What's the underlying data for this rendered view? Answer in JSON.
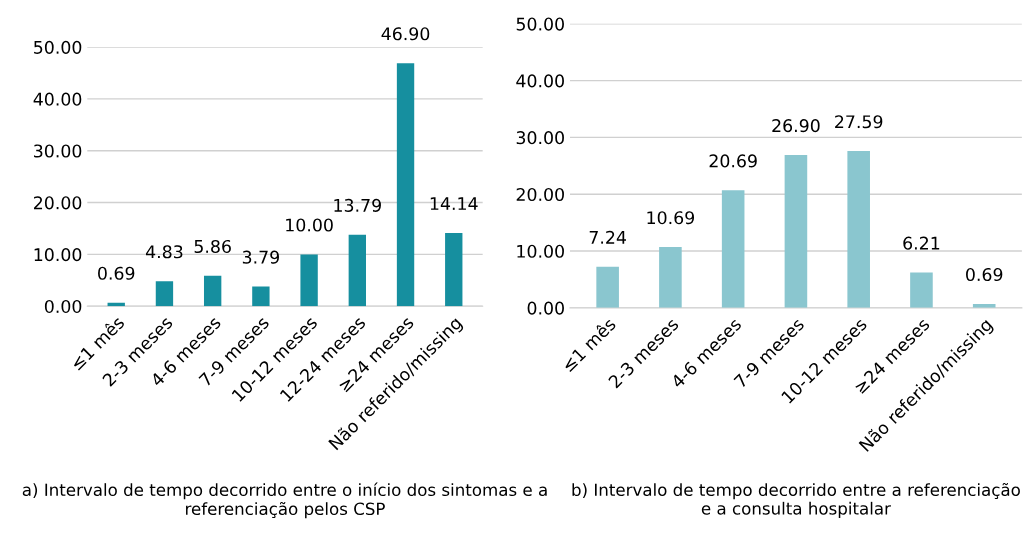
{
  "chart_data": [
    {
      "type": "bar",
      "categories": [
        "≤1 mês",
        "2-3 meses",
        "4-6 meses",
        "7-9 meses",
        "10-12 meses",
        "12-24 meses",
        "≥24 meses",
        "Não referido/missing"
      ],
      "values": [
        0.69,
        4.83,
        5.86,
        3.79,
        10.0,
        13.79,
        46.9,
        14.14
      ],
      "value_labels": [
        "0.69",
        "4.83",
        "5.86",
        "3.79",
        "10.00",
        "13.79",
        "46.90",
        "14.14"
      ],
      "color": "#168f9f",
      "ylim": [
        0,
        50
      ],
      "yticks": [
        {
          "value": 0,
          "label": "0.00"
        },
        {
          "value": 10,
          "label": "10.00"
        },
        {
          "value": 20,
          "label": "20.00"
        },
        {
          "value": 30,
          "label": "30.00"
        },
        {
          "value": 40,
          "label": "40.00"
        },
        {
          "value": 50,
          "label": "50.00"
        }
      ],
      "grid": "y",
      "annotations": [
        "a) Intervalo de tempo decorrido entre o início dos sintomas e a referenciação pelos CSP"
      ]
    },
    {
      "type": "bar",
      "categories": [
        "≤1 mês",
        "2-3 meses",
        "4-6 meses",
        "7-9 meses",
        "10-12 meses",
        "≥24 meses",
        "Não referido/missing"
      ],
      "values": [
        7.24,
        10.69,
        20.69,
        26.9,
        27.59,
        6.21,
        0.69
      ],
      "value_labels": [
        "7.24",
        "10.69",
        "20.69",
        "26.90",
        "27.59",
        "6.21",
        "0.69"
      ],
      "color": "#8ac6cf",
      "ylim": [
        0,
        50
      ],
      "yticks": [
        {
          "value": 0,
          "label": "0.00"
        },
        {
          "value": 10,
          "label": "10.00"
        },
        {
          "value": 20,
          "label": "20.00"
        },
        {
          "value": 30,
          "label": "30.00"
        },
        {
          "value": 40,
          "label": "40.00"
        },
        {
          "value": 50,
          "label": "50.00"
        }
      ],
      "grid": "y",
      "annotations": [
        "b) Intervalo de tempo decorrido entre a referenciação e a consulta hospitalar"
      ]
    }
  ]
}
